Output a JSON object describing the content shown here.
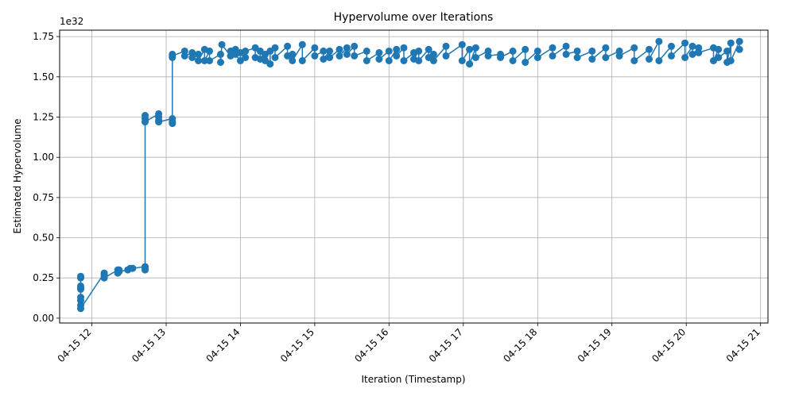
{
  "chart_data": {
    "type": "line",
    "title": "Hypervolume over Iterations",
    "xlabel": "Iteration (Timestamp)",
    "ylabel": "Estimated Hypervolume",
    "y_multiplier_label": "1e32",
    "x_axis_type": "time",
    "xlim": [
      "2024-04-15T11:34",
      "2024-04-15T21:06"
    ],
    "ylim": [
      -0.03,
      1.79
    ],
    "x_ticks": [
      "2024-04-15T12:00",
      "2024-04-15T13:00",
      "2024-04-15T14:00",
      "2024-04-15T15:00",
      "2024-04-15T16:00",
      "2024-04-15T17:00",
      "2024-04-15T18:00",
      "2024-04-15T19:00",
      "2024-04-15T20:00",
      "2024-04-15T21:00"
    ],
    "x_tick_labels": [
      "04-15 12",
      "04-15 13",
      "04-15 14",
      "04-15 15",
      "04-15 16",
      "04-15 17",
      "04-15 18",
      "04-15 19",
      "04-15 20",
      "04-15 21"
    ],
    "y_ticks": [
      0.0,
      0.25,
      0.5,
      0.75,
      1.0,
      1.25,
      1.5,
      1.75
    ],
    "y_tick_labels": [
      "0.00",
      "0.25",
      "0.50",
      "0.75",
      "1.00",
      "1.25",
      "1.50",
      "1.75"
    ],
    "grid": true,
    "line_color": "#1f77b4",
    "marker": "circle",
    "series": [
      {
        "x": [
          "2024-04-15T11:51",
          "2024-04-15T11:51",
          "2024-04-15T11:51",
          "2024-04-15T11:51",
          "2024-04-15T11:51",
          "2024-04-15T11:51",
          "2024-04-15T11:51",
          "2024-04-15T11:51",
          "2024-04-15T11:51",
          "2024-04-15T12:10",
          "2024-04-15T12:10",
          "2024-04-15T12:10",
          "2024-04-15T12:10",
          "2024-04-15T12:21",
          "2024-04-15T12:21",
          "2024-04-15T12:22",
          "2024-04-15T12:22",
          "2024-04-15T12:29",
          "2024-04-15T12:31",
          "2024-04-15T12:33",
          "2024-04-15T12:43",
          "2024-04-15T12:43",
          "2024-04-15T12:43",
          "2024-04-15T12:43",
          "2024-04-15T12:43",
          "2024-04-15T12:43",
          "2024-04-15T12:54",
          "2024-04-15T12:54",
          "2024-04-15T12:54",
          "2024-04-15T12:54",
          "2024-04-15T13:05",
          "2024-04-15T13:05",
          "2024-04-15T13:05",
          "2024-04-15T13:05",
          "2024-04-15T13:05",
          "2024-04-15T13:05",
          "2024-04-15T13:15",
          "2024-04-15T13:15",
          "2024-04-15T13:21",
          "2024-04-15T13:21",
          "2024-04-15T13:26",
          "2024-04-15T13:26",
          "2024-04-15T13:31",
          "2024-04-15T13:31",
          "2024-04-15T13:35",
          "2024-04-15T13:35",
          "2024-04-15T13:44",
          "2024-04-15T13:44",
          "2024-04-15T13:45",
          "2024-04-15T13:52",
          "2024-04-15T13:52",
          "2024-04-15T13:56",
          "2024-04-15T13:56",
          "2024-04-15T14:00",
          "2024-04-15T14:00",
          "2024-04-15T14:04",
          "2024-04-15T14:04",
          "2024-04-15T14:12",
          "2024-04-15T14:12",
          "2024-04-15T14:16",
          "2024-04-15T14:16",
          "2024-04-15T14:20",
          "2024-04-15T14:20",
          "2024-04-15T14:24",
          "2024-04-15T14:24",
          "2024-04-15T14:28",
          "2024-04-15T14:28",
          "2024-04-15T14:38",
          "2024-04-15T14:38",
          "2024-04-15T14:42",
          "2024-04-15T14:42",
          "2024-04-15T14:50",
          "2024-04-15T14:50",
          "2024-04-15T15:00",
          "2024-04-15T15:00",
          "2024-04-15T15:07",
          "2024-04-15T15:07",
          "2024-04-15T15:12",
          "2024-04-15T15:12",
          "2024-04-15T15:20",
          "2024-04-15T15:20",
          "2024-04-15T15:26",
          "2024-04-15T15:26",
          "2024-04-15T15:32",
          "2024-04-15T15:32",
          "2024-04-15T15:42",
          "2024-04-15T15:42",
          "2024-04-15T15:52",
          "2024-04-15T15:52",
          "2024-04-15T16:00",
          "2024-04-15T16:00",
          "2024-04-15T16:06",
          "2024-04-15T16:06",
          "2024-04-15T16:12",
          "2024-04-15T16:12",
          "2024-04-15T16:20",
          "2024-04-15T16:20",
          "2024-04-15T16:24",
          "2024-04-15T16:24",
          "2024-04-15T16:32",
          "2024-04-15T16:32",
          "2024-04-15T16:36",
          "2024-04-15T16:36",
          "2024-04-15T16:46",
          "2024-04-15T16:46",
          "2024-04-15T16:59",
          "2024-04-15T16:59",
          "2024-04-15T17:05",
          "2024-04-15T17:05",
          "2024-04-15T17:10",
          "2024-04-15T17:10",
          "2024-04-15T17:20",
          "2024-04-15T17:20",
          "2024-04-15T17:30",
          "2024-04-15T17:30",
          "2024-04-15T17:40",
          "2024-04-15T17:40",
          "2024-04-15T17:50",
          "2024-04-15T17:50",
          "2024-04-15T18:00",
          "2024-04-15T18:00",
          "2024-04-15T18:12",
          "2024-04-15T18:12",
          "2024-04-15T18:23",
          "2024-04-15T18:23",
          "2024-04-15T18:32",
          "2024-04-15T18:32",
          "2024-04-15T18:44",
          "2024-04-15T18:44",
          "2024-04-15T18:55",
          "2024-04-15T18:55",
          "2024-04-15T19:06",
          "2024-04-15T19:06",
          "2024-04-15T19:18",
          "2024-04-15T19:18",
          "2024-04-15T19:30",
          "2024-04-15T19:30",
          "2024-04-15T19:38",
          "2024-04-15T19:38",
          "2024-04-15T19:48",
          "2024-04-15T19:48",
          "2024-04-15T19:59",
          "2024-04-15T19:59",
          "2024-04-15T20:05",
          "2024-04-15T20:05",
          "2024-04-15T20:10",
          "2024-04-15T20:10",
          "2024-04-15T20:22",
          "2024-04-15T20:22",
          "2024-04-15T20:26",
          "2024-04-15T20:26",
          "2024-04-15T20:33",
          "2024-04-15T20:33",
          "2024-04-15T20:36",
          "2024-04-15T20:36",
          "2024-04-15T20:43",
          "2024-04-15T20:43"
        ],
        "y": [
          0.26,
          0.25,
          0.2,
          0.19,
          0.18,
          0.13,
          0.11,
          0.08,
          0.06,
          0.28,
          0.27,
          0.26,
          0.25,
          0.3,
          0.28,
          0.3,
          0.29,
          0.3,
          0.31,
          0.31,
          0.32,
          0.31,
          0.3,
          1.26,
          1.24,
          1.22,
          1.27,
          1.25,
          1.23,
          1.22,
          1.24,
          1.22,
          1.21,
          1.62,
          1.64,
          1.63,
          1.66,
          1.63,
          1.65,
          1.62,
          1.64,
          1.6,
          1.67,
          1.6,
          1.66,
          1.6,
          1.64,
          1.59,
          1.7,
          1.63,
          1.66,
          1.67,
          1.64,
          1.6,
          1.65,
          1.62,
          1.66,
          1.68,
          1.62,
          1.61,
          1.66,
          1.6,
          1.64,
          1.58,
          1.66,
          1.68,
          1.62,
          1.69,
          1.63,
          1.64,
          1.6,
          1.7,
          1.6,
          1.68,
          1.63,
          1.66,
          1.61,
          1.66,
          1.62,
          1.67,
          1.63,
          1.68,
          1.64,
          1.69,
          1.63,
          1.66,
          1.6,
          1.65,
          1.61,
          1.66,
          1.6,
          1.67,
          1.63,
          1.68,
          1.6,
          1.65,
          1.61,
          1.66,
          1.6,
          1.67,
          1.62,
          1.64,
          1.6,
          1.69,
          1.63,
          1.7,
          1.6,
          1.67,
          1.58,
          1.68,
          1.62,
          1.66,
          1.63,
          1.64,
          1.62,
          1.66,
          1.6,
          1.67,
          1.59,
          1.66,
          1.62,
          1.68,
          1.63,
          1.69,
          1.64,
          1.66,
          1.62,
          1.66,
          1.61,
          1.68,
          1.62,
          1.66,
          1.63,
          1.68,
          1.6,
          1.67,
          1.61,
          1.72,
          1.6,
          1.69,
          1.63,
          1.71,
          1.62,
          1.69,
          1.64,
          1.68,
          1.65,
          1.68,
          1.6,
          1.67,
          1.62,
          1.66,
          1.59,
          1.71,
          1.6,
          1.72,
          1.67
        ]
      }
    ]
  }
}
